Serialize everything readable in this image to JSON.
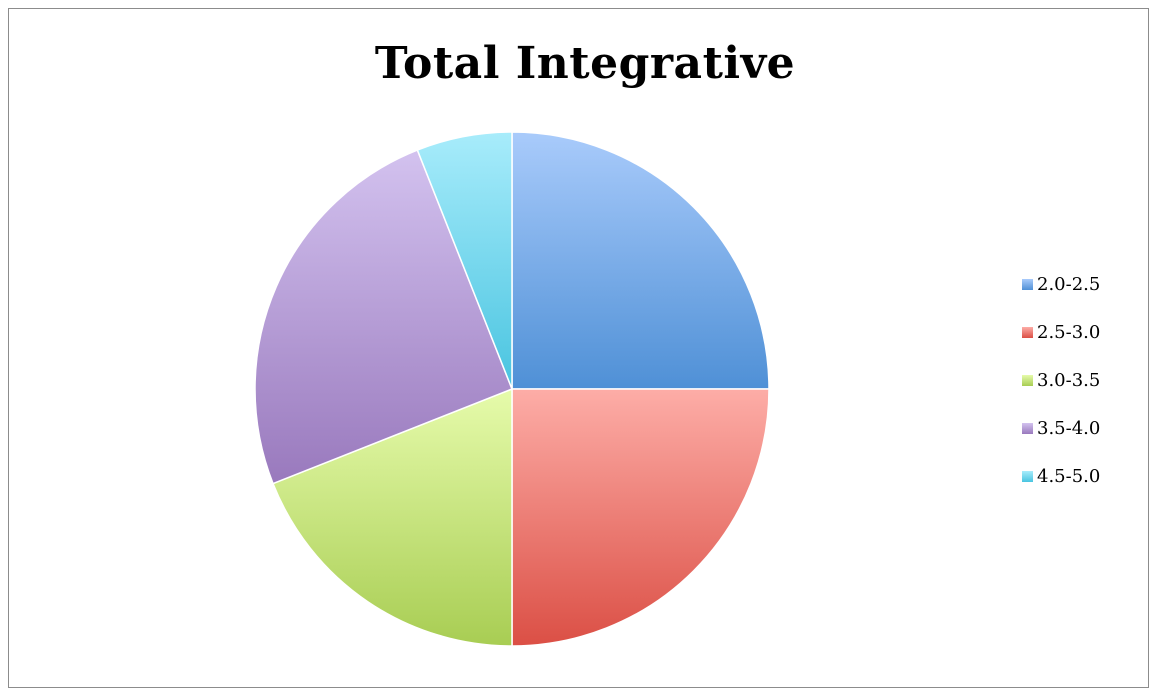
{
  "chart_data": {
    "type": "pie",
    "title": "Total Integrative",
    "categories": [
      "2.0-2.5",
      "2.5-3.0",
      "3.0-3.5",
      "3.5-4.0",
      "4.5-5.0"
    ],
    "values": [
      25.0,
      25.0,
      19.0,
      25.0,
      6.0
    ],
    "colors": [
      {
        "light": "#a9cbfb",
        "dark": "#4f90d6"
      },
      {
        "light": "#fdada7",
        "dark": "#db4f45"
      },
      {
        "light": "#e6fbab",
        "dark": "#a8cd53"
      },
      {
        "light": "#d3c2ef",
        "dark": "#9979bd"
      },
      {
        "light": "#a8ecfb",
        "dark": "#49c4e0"
      }
    ],
    "start_angle": "top",
    "direction": "clockwise",
    "legend_position": "right"
  }
}
